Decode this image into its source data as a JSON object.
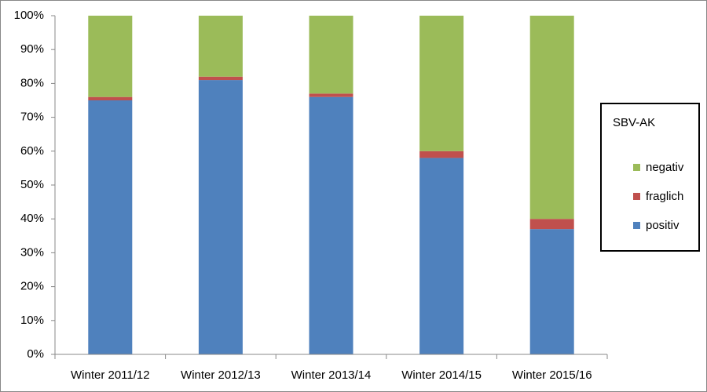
{
  "chart_data": {
    "type": "stacked_bar",
    "categories": [
      "Winter 2011/12",
      "Winter 2012/13",
      "Winter 2013/14",
      "Winter 2014/15",
      "Winter 2015/16"
    ],
    "series": [
      {
        "name": "positiv",
        "color": "#4f81bd",
        "values": [
          75,
          81,
          76,
          58,
          37
        ]
      },
      {
        "name": "fraglich",
        "color": "#c0504d",
        "values": [
          1,
          1,
          1,
          2,
          3
        ]
      },
      {
        "name": "negativ",
        "color": "#9bbb59",
        "values": [
          24,
          18,
          23,
          40,
          60
        ]
      }
    ],
    "ylim": [
      0,
      100
    ],
    "yticks": [
      {
        "value": 0,
        "label": "0%"
      },
      {
        "value": 10,
        "label": "10%"
      },
      {
        "value": 20,
        "label": "20%"
      },
      {
        "value": 30,
        "label": "30%"
      },
      {
        "value": 40,
        "label": "40%"
      },
      {
        "value": 50,
        "label": "50%"
      },
      {
        "value": 60,
        "label": "60%"
      },
      {
        "value": 70,
        "label": "70%"
      },
      {
        "value": 80,
        "label": "80%"
      },
      {
        "value": 90,
        "label": "90%"
      },
      {
        "value": 100,
        "label": "100%"
      }
    ],
    "legend_title": "SBV-AK",
    "legend_position": "right"
  }
}
